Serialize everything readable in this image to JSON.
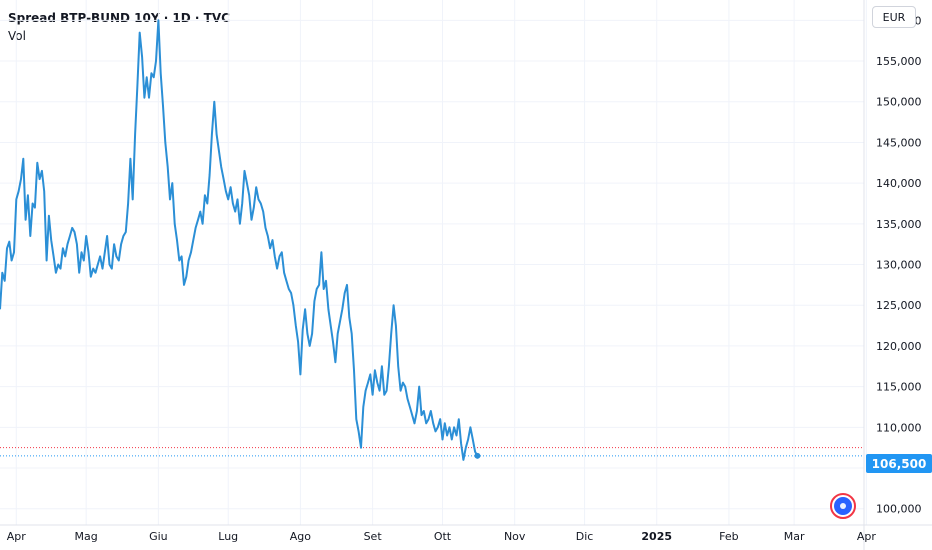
{
  "legend": {
    "title": "Spread BTP-BUND 10Y · 1D · TVC",
    "sub": "Vol"
  },
  "currency": "EUR",
  "last_value_label": "106,500",
  "colors": {
    "line": "#2b8fd6",
    "badge": "#2196f3",
    "grid": "#f0f3fa",
    "dotted_blue": "#2196f3",
    "dotted_red": "#f23645"
  },
  "chart_data": {
    "type": "line",
    "title": "Spread BTP-BUND 10Y · 1D · TVC",
    "ylim": [
      98000,
      162500
    ],
    "y_ticks": [
      100000,
      105000,
      110000,
      115000,
      120000,
      125000,
      130000,
      135000,
      140000,
      145000,
      150000,
      155000,
      160000
    ],
    "y_tick_labels": [
      "100,000",
      "105,000",
      "110,000",
      "115,000",
      "120,000",
      "125,000",
      "130,000",
      "135,000",
      "140,000",
      "145,000",
      "150,000",
      "155,000",
      "160,000"
    ],
    "x_tick_labels": [
      "Apr",
      "Mag",
      "Giu",
      "Lug",
      "Ago",
      "Set",
      "Ott",
      "Nov",
      "Dic",
      "2025",
      "Feb",
      "Mar",
      "Apr"
    ],
    "x_ticks_bold": [
      false,
      false,
      false,
      false,
      false,
      false,
      false,
      false,
      false,
      true,
      false,
      false,
      false
    ],
    "x_range": [
      "2024-03-25",
      "2025-03-31"
    ],
    "x_ticks": [
      "2024-04-01",
      "2024-05-01",
      "2024-06-01",
      "2024-07-01",
      "2024-08-01",
      "2024-09-01",
      "2024-10-01",
      "2024-11-01",
      "2024-12-01",
      "2025-01-01",
      "2025-02-01",
      "2025-03-01",
      "2025-04-01"
    ],
    "last_value": 106500,
    "dotted_red_level": 107500,
    "grid": true,
    "series": [
      {
        "points": [
          [
            "2024-03-25",
            124500
          ],
          [
            "2024-03-26",
            129000
          ],
          [
            "2024-03-27",
            128000
          ],
          [
            "2024-03-28",
            132000
          ],
          [
            "2024-03-29",
            132800
          ],
          [
            "2024-03-30",
            130500
          ],
          [
            "2024-03-31",
            131500
          ],
          [
            "2024-04-01",
            138000
          ],
          [
            "2024-04-02",
            139000
          ],
          [
            "2024-04-03",
            140500
          ],
          [
            "2024-04-04",
            143000
          ],
          [
            "2024-04-05",
            135500
          ],
          [
            "2024-04-06",
            138500
          ],
          [
            "2024-04-07",
            133500
          ],
          [
            "2024-04-08",
            137500
          ],
          [
            "2024-04-09",
            137000
          ],
          [
            "2024-04-10",
            142500
          ],
          [
            "2024-04-11",
            140500
          ],
          [
            "2024-04-12",
            141500
          ],
          [
            "2024-04-13",
            139000
          ],
          [
            "2024-04-14",
            130500
          ],
          [
            "2024-04-15",
            136000
          ],
          [
            "2024-04-16",
            133000
          ],
          [
            "2024-04-17",
            131000
          ],
          [
            "2024-04-18",
            129000
          ],
          [
            "2024-04-19",
            130000
          ],
          [
            "2024-04-20",
            129500
          ],
          [
            "2024-04-21",
            132000
          ],
          [
            "2024-04-22",
            131000
          ],
          [
            "2024-04-23",
            132500
          ],
          [
            "2024-04-24",
            133500
          ],
          [
            "2024-04-25",
            134500
          ],
          [
            "2024-04-26",
            134000
          ],
          [
            "2024-04-27",
            132500
          ],
          [
            "2024-04-28",
            129000
          ],
          [
            "2024-04-29",
            131500
          ],
          [
            "2024-04-30",
            130500
          ],
          [
            "2024-05-01",
            133500
          ],
          [
            "2024-05-02",
            131500
          ],
          [
            "2024-05-03",
            128500
          ],
          [
            "2024-05-04",
            129500
          ],
          [
            "2024-05-05",
            129000
          ],
          [
            "2024-05-06",
            130000
          ],
          [
            "2024-05-07",
            131000
          ],
          [
            "2024-05-08",
            129500
          ],
          [
            "2024-05-09",
            131500
          ],
          [
            "2024-05-10",
            133500
          ],
          [
            "2024-05-11",
            130000
          ],
          [
            "2024-05-12",
            129500
          ],
          [
            "2024-05-13",
            132500
          ],
          [
            "2024-05-14",
            131000
          ],
          [
            "2024-05-15",
            130500
          ],
          [
            "2024-05-16",
            132500
          ],
          [
            "2024-05-17",
            133500
          ],
          [
            "2024-05-18",
            134000
          ],
          [
            "2024-05-19",
            137500
          ],
          [
            "2024-05-20",
            143000
          ],
          [
            "2024-05-21",
            138000
          ],
          [
            "2024-05-22",
            146000
          ],
          [
            "2024-05-23",
            152000
          ],
          [
            "2024-05-24",
            158500
          ],
          [
            "2024-05-25",
            155500
          ],
          [
            "2024-05-26",
            150500
          ],
          [
            "2024-05-27",
            153000
          ],
          [
            "2024-05-28",
            150500
          ],
          [
            "2024-05-29",
            153500
          ],
          [
            "2024-05-30",
            153000
          ],
          [
            "2024-05-31",
            155000
          ],
          [
            "2024-06-01",
            160000
          ],
          [
            "2024-06-02",
            153500
          ],
          [
            "2024-06-03",
            149500
          ],
          [
            "2024-06-04",
            145000
          ],
          [
            "2024-06-05",
            142000
          ],
          [
            "2024-06-06",
            138000
          ],
          [
            "2024-06-07",
            140000
          ],
          [
            "2024-06-08",
            135000
          ],
          [
            "2024-06-09",
            133000
          ],
          [
            "2024-06-10",
            130500
          ],
          [
            "2024-06-11",
            131000
          ],
          [
            "2024-06-12",
            127500
          ],
          [
            "2024-06-13",
            128500
          ],
          [
            "2024-06-14",
            130500
          ],
          [
            "2024-06-15",
            131500
          ],
          [
            "2024-06-16",
            133000
          ],
          [
            "2024-06-17",
            134500
          ],
          [
            "2024-06-18",
            135500
          ],
          [
            "2024-06-19",
            136500
          ],
          [
            "2024-06-20",
            135000
          ],
          [
            "2024-06-21",
            138500
          ],
          [
            "2024-06-22",
            137500
          ],
          [
            "2024-06-23",
            141000
          ],
          [
            "2024-06-24",
            146000
          ],
          [
            "2024-06-25",
            150000
          ],
          [
            "2024-06-26",
            146000
          ],
          [
            "2024-06-27",
            144000
          ],
          [
            "2024-06-28",
            142000
          ],
          [
            "2024-06-29",
            140500
          ],
          [
            "2024-06-30",
            139000
          ],
          [
            "2024-07-01",
            138000
          ],
          [
            "2024-07-02",
            139500
          ],
          [
            "2024-07-03",
            137500
          ],
          [
            "2024-07-04",
            136500
          ],
          [
            "2024-07-05",
            138000
          ],
          [
            "2024-07-06",
            135000
          ],
          [
            "2024-07-07",
            137500
          ],
          [
            "2024-07-08",
            141500
          ],
          [
            "2024-07-09",
            140000
          ],
          [
            "2024-07-10",
            138500
          ],
          [
            "2024-07-11",
            135500
          ],
          [
            "2024-07-12",
            137000
          ],
          [
            "2024-07-13",
            139500
          ],
          [
            "2024-07-14",
            138000
          ],
          [
            "2024-07-15",
            137500
          ],
          [
            "2024-07-16",
            136500
          ],
          [
            "2024-07-17",
            134500
          ],
          [
            "2024-07-18",
            133500
          ],
          [
            "2024-07-19",
            132000
          ],
          [
            "2024-07-20",
            133000
          ],
          [
            "2024-07-21",
            131000
          ],
          [
            "2024-07-22",
            129500
          ],
          [
            "2024-07-23",
            131000
          ],
          [
            "2024-07-24",
            131500
          ],
          [
            "2024-07-25",
            129000
          ],
          [
            "2024-07-26",
            128000
          ],
          [
            "2024-07-27",
            127000
          ],
          [
            "2024-07-28",
            126500
          ],
          [
            "2024-07-29",
            125000
          ],
          [
            "2024-07-30",
            122500
          ],
          [
            "2024-07-31",
            120500
          ],
          [
            "2024-08-01",
            116500
          ],
          [
            "2024-08-02",
            122000
          ],
          [
            "2024-08-03",
            124500
          ],
          [
            "2024-08-04",
            121500
          ],
          [
            "2024-08-05",
            120000
          ],
          [
            "2024-08-06",
            121500
          ],
          [
            "2024-08-07",
            125500
          ],
          [
            "2024-08-08",
            127000
          ],
          [
            "2024-08-09",
            127500
          ],
          [
            "2024-08-10",
            131500
          ],
          [
            "2024-08-11",
            127000
          ],
          [
            "2024-08-12",
            128000
          ],
          [
            "2024-08-13",
            124500
          ],
          [
            "2024-08-14",
            122500
          ],
          [
            "2024-08-15",
            120500
          ],
          [
            "2024-08-16",
            118000
          ],
          [
            "2024-08-17",
            121500
          ],
          [
            "2024-08-18",
            123000
          ],
          [
            "2024-08-19",
            124500
          ],
          [
            "2024-08-20",
            126500
          ],
          [
            "2024-08-21",
            127500
          ],
          [
            "2024-08-22",
            123500
          ],
          [
            "2024-08-23",
            121500
          ],
          [
            "2024-08-24",
            117000
          ],
          [
            "2024-08-25",
            111000
          ],
          [
            "2024-08-26",
            109500
          ],
          [
            "2024-08-27",
            107500
          ],
          [
            "2024-08-28",
            112500
          ],
          [
            "2024-08-29",
            114500
          ],
          [
            "2024-08-30",
            115500
          ],
          [
            "2024-08-31",
            116500
          ],
          [
            "2024-09-01",
            114000
          ],
          [
            "2024-09-02",
            117000
          ],
          [
            "2024-09-03",
            115500
          ],
          [
            "2024-09-04",
            114500
          ],
          [
            "2024-09-05",
            117500
          ],
          [
            "2024-09-06",
            114000
          ],
          [
            "2024-09-07",
            114500
          ],
          [
            "2024-09-08",
            117500
          ],
          [
            "2024-09-09",
            121500
          ],
          [
            "2024-09-10",
            125000
          ],
          [
            "2024-09-11",
            122500
          ],
          [
            "2024-09-12",
            117500
          ],
          [
            "2024-09-13",
            114500
          ],
          [
            "2024-09-14",
            115500
          ],
          [
            "2024-09-15",
            115000
          ],
          [
            "2024-09-16",
            113500
          ],
          [
            "2024-09-17",
            112500
          ],
          [
            "2024-09-18",
            111500
          ],
          [
            "2024-09-19",
            110500
          ],
          [
            "2024-09-20",
            112000
          ],
          [
            "2024-09-21",
            115000
          ],
          [
            "2024-09-22",
            111500
          ],
          [
            "2024-09-23",
            112000
          ],
          [
            "2024-09-24",
            110500
          ],
          [
            "2024-09-25",
            111000
          ],
          [
            "2024-09-26",
            112000
          ],
          [
            "2024-09-27",
            110500
          ],
          [
            "2024-09-28",
            109500
          ],
          [
            "2024-09-29",
            110000
          ],
          [
            "2024-09-30",
            111000
          ],
          [
            "2024-10-01",
            108500
          ],
          [
            "2024-10-02",
            110500
          ],
          [
            "2024-10-03",
            109000
          ],
          [
            "2024-10-04",
            110000
          ],
          [
            "2024-10-05",
            108500
          ],
          [
            "2024-10-06",
            110000
          ],
          [
            "2024-10-07",
            109000
          ],
          [
            "2024-10-08",
            111000
          ],
          [
            "2024-10-09",
            108000
          ],
          [
            "2024-10-10",
            106000
          ],
          [
            "2024-10-11",
            107500
          ],
          [
            "2024-10-12",
            108500
          ],
          [
            "2024-10-13",
            110000
          ],
          [
            "2024-10-14",
            108500
          ],
          [
            "2024-10-15",
            107000
          ],
          [
            "2024-10-16",
            106500
          ]
        ]
      }
    ]
  }
}
